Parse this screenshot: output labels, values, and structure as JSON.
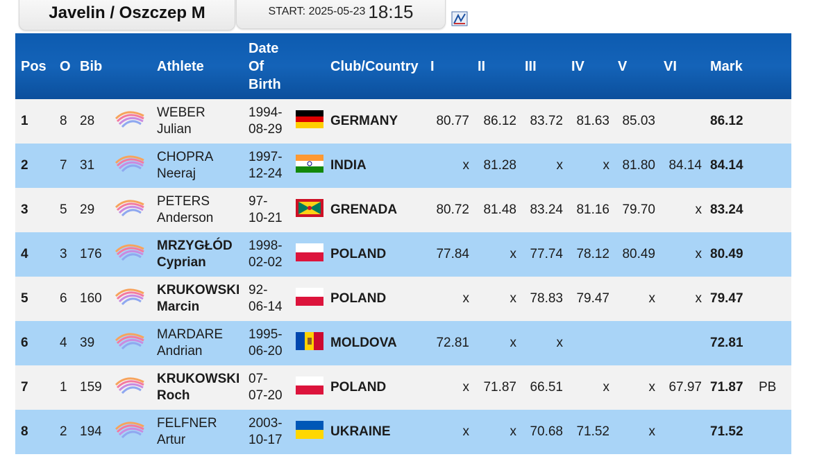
{
  "header": {
    "event": "Javelin / Oszczep M",
    "start_label": "START: 2025-05-23",
    "start_time": "18:15"
  },
  "table": {
    "columns": [
      "Pos",
      "O",
      "Bib",
      null,
      "Athlete",
      "Date Of Birth",
      null,
      "Club/Country",
      "I",
      "II",
      "III",
      "IV",
      "V",
      "VI",
      "Mark",
      null
    ],
    "rows": [
      {
        "pos": 1,
        "order": 8,
        "bib": 28,
        "surname": "WEBER",
        "first_name": "Julian",
        "highlight": false,
        "dob": [
          "1994-",
          "08-29"
        ],
        "country": "GERMANY",
        "attempts": [
          "80.77",
          "86.12",
          "83.72",
          "81.63",
          "85.03",
          null
        ],
        "mark": "86.12"
      },
      {
        "pos": 2,
        "order": 7,
        "bib": 31,
        "surname": "CHOPRA",
        "first_name": "Neeraj",
        "highlight": false,
        "dob": [
          "1997-",
          "12-24"
        ],
        "country": "INDIA",
        "attempts": [
          "x",
          "81.28",
          "x",
          "x",
          "81.80",
          "84.14"
        ],
        "mark": "84.14"
      },
      {
        "pos": 3,
        "order": 5,
        "bib": 29,
        "surname": "PETERS",
        "first_name": "Anderson",
        "highlight": false,
        "dob": [
          "97-",
          "10-21"
        ],
        "country": "GRENADA",
        "attempts": [
          "80.72",
          "81.48",
          "83.24",
          "81.16",
          "79.70",
          "x"
        ],
        "mark": "83.24"
      },
      {
        "pos": 4,
        "order": 3,
        "bib": 176,
        "surname": "MRZYGŁÓD",
        "first_name": "Cyprian",
        "highlight": true,
        "dob": [
          "1998-",
          "02-02"
        ],
        "country": "POLAND",
        "attempts": [
          "77.84",
          "x",
          "77.74",
          "78.12",
          "80.49",
          "x"
        ],
        "mark": "80.49"
      },
      {
        "pos": 5,
        "order": 6,
        "bib": 160,
        "surname": "KRUKOWSKI",
        "first_name": "Marcin",
        "highlight": true,
        "dob": [
          "92-",
          "06-14"
        ],
        "country": "POLAND",
        "attempts": [
          "x",
          "x",
          "78.83",
          "79.47",
          "x",
          "x"
        ],
        "mark": "79.47"
      },
      {
        "pos": 6,
        "order": 4,
        "bib": 39,
        "surname": "MARDARE",
        "first_name": "Andrian",
        "highlight": false,
        "dob": [
          "1995-",
          "06-20"
        ],
        "country": "MOLDOVA",
        "attempts": [
          "72.81",
          "x",
          "x",
          null,
          null,
          null
        ],
        "mark": "72.81"
      },
      {
        "pos": 7,
        "order": 1,
        "bib": 159,
        "surname": "KRUKOWSKI",
        "first_name": "Roch",
        "highlight": true,
        "dob": [
          "07-",
          "07-20"
        ],
        "country": "POLAND",
        "attempts": [
          "x",
          "71.87",
          "66.51",
          "x",
          "x",
          "67.97"
        ],
        "mark": "71.87",
        "note": "PB"
      },
      {
        "pos": 8,
        "order": 2,
        "bib": 194,
        "surname": "FELFNER",
        "first_name": "Artur",
        "highlight": false,
        "dob": [
          "2003-",
          "10-17"
        ],
        "country": "UKRAINE",
        "attempts": [
          "x",
          "x",
          "70.68",
          "71.52",
          "x",
          null
        ],
        "mark": "71.52"
      }
    ]
  }
}
